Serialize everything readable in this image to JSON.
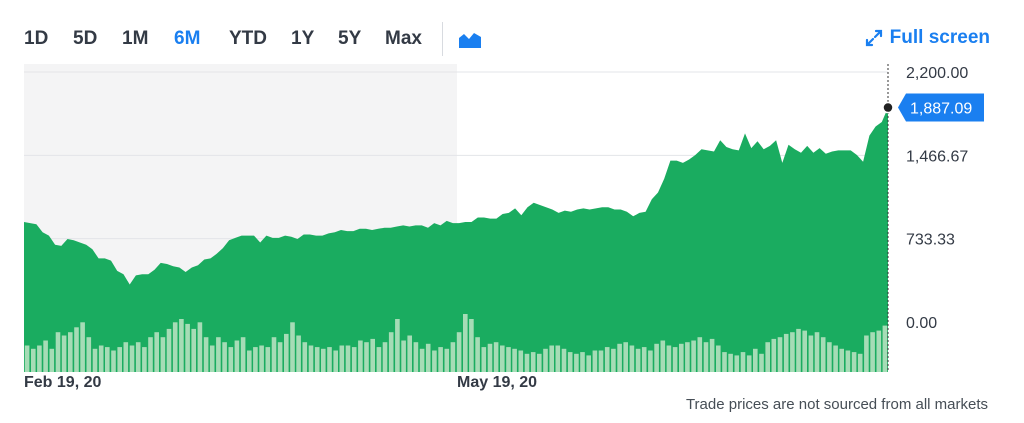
{
  "toolbar": {
    "ranges": [
      "1D",
      "5D",
      "1M",
      "6M",
      "YTD",
      "1Y",
      "5Y",
      "Max"
    ],
    "active_range": "6M",
    "chart_type_icon": "area-chart-icon",
    "fullscreen_label": "Full screen",
    "fullscreen_icon": "expand-icon"
  },
  "footnote": "Trade prices are not sourced from all markets",
  "colors": {
    "area": "#1aac60",
    "volume": "#a6dcb6",
    "accent": "#1a7ff0",
    "shade": "#f4f4f5"
  },
  "chart_data": {
    "type": "area",
    "y_axis_ticks": [
      "2,200.00",
      "1,466.67",
      "733.33",
      "0.00"
    ],
    "ylim": [
      -440,
      2200
    ],
    "x_tick_labels": [
      "Feb 19, 20",
      "May 19, 20"
    ],
    "last_price": "1,887.09",
    "last_value": 1887.09,
    "price": [
      880,
      870,
      860,
      790,
      760,
      680,
      670,
      730,
      720,
      700,
      680,
      640,
      560,
      560,
      540,
      450,
      420,
      330,
      410,
      420,
      420,
      460,
      520,
      510,
      490,
      480,
      440,
      480,
      500,
      550,
      560,
      600,
      650,
      720,
      740,
      760,
      760,
      760,
      700,
      760,
      740,
      740,
      760,
      750,
      730,
      770,
      770,
      760,
      760,
      780,
      790,
      810,
      800,
      800,
      820,
      820,
      810,
      820,
      830,
      830,
      840,
      850,
      840,
      850,
      850,
      830,
      870,
      850,
      890,
      870,
      870,
      880,
      880,
      920,
      920,
      910,
      910,
      950,
      960,
      1000,
      940,
      1010,
      1050,
      1030,
      1010,
      990,
      960,
      980,
      970,
      990,
      1000,
      990,
      1000,
      1010,
      1010,
      990,
      990,
      970,
      930,
      960,
      970,
      1080,
      1140,
      1260,
      1420,
      1420,
      1400,
      1430,
      1470,
      1520,
      1510,
      1500,
      1600,
      1540,
      1520,
      1510,
      1660,
      1530,
      1590,
      1520,
      1550,
      1600,
      1400,
      1560,
      1520,
      1490,
      1550,
      1490,
      1530,
      1480,
      1500,
      1510,
      1510,
      1510,
      1470,
      1410,
      1640,
      1720,
      1760,
      1887.09
    ],
    "volume": [
      16,
      14,
      16,
      19,
      14,
      24,
      22,
      24,
      27,
      30,
      21,
      14,
      16,
      15,
      13,
      15,
      18,
      16,
      18,
      15,
      21,
      24,
      21,
      26,
      30,
      32,
      29,
      26,
      30,
      21,
      16,
      21,
      18,
      15,
      19,
      21,
      13,
      15,
      16,
      15,
      21,
      18,
      23,
      30,
      22,
      18,
      16,
      15,
      14,
      15,
      13,
      16,
      16,
      15,
      19,
      18,
      20,
      15,
      18,
      24,
      32,
      19,
      22,
      18,
      14,
      17,
      13,
      15,
      14,
      18,
      24,
      35,
      32,
      21,
      15,
      17,
      18,
      16,
      15,
      14,
      13,
      11,
      12,
      11,
      14,
      16,
      16,
      14,
      12,
      11,
      12,
      10,
      13,
      13,
      15,
      14,
      17,
      18,
      16,
      14,
      15,
      13,
      17,
      19,
      16,
      15,
      17,
      18,
      19,
      21,
      18,
      20,
      16,
      12,
      11,
      10,
      12,
      10,
      14,
      11,
      18,
      20,
      21,
      23,
      24,
      26,
      25,
      22,
      24,
      21,
      18,
      16,
      14,
      13,
      12,
      11,
      22,
      24,
      25,
      28
    ]
  }
}
